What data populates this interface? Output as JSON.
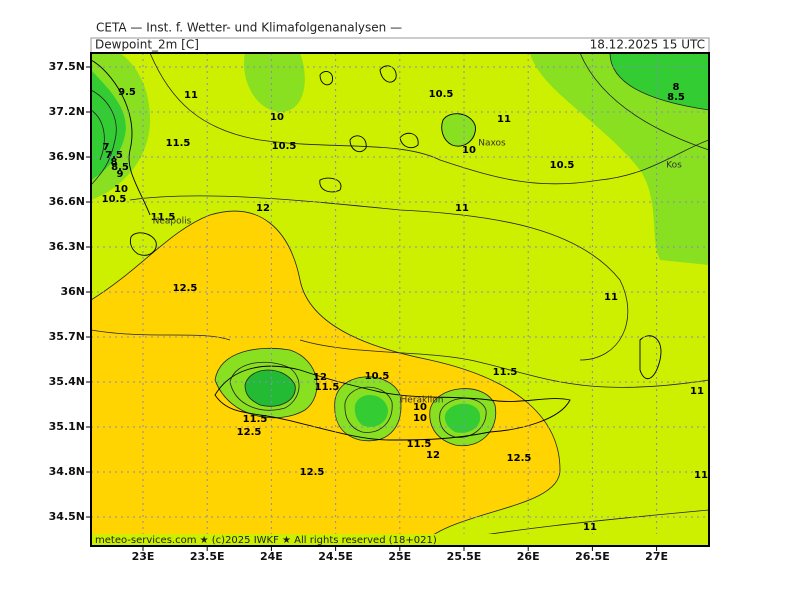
{
  "header": {
    "title": "CETA — Inst. f. Wetter- und Klimafolgenanalysen —",
    "parameter": "Dewpoint_2m [C]",
    "valid_time": "18.12.2025 15 UTC"
  },
  "lat_labels": [
    "37.5N",
    "37.2N",
    "36.9N",
    "36.6N",
    "36.3N",
    "36N",
    "35.7N",
    "35.4N",
    "35.1N",
    "34.8N",
    "34.5N"
  ],
  "lon_labels": [
    "23E",
    "23.5E",
    "24E",
    "24.5E",
    "25E",
    "25.5E",
    "26E",
    "26.5E",
    "27E"
  ],
  "contour_labels": [
    "9.5",
    "11",
    "10",
    "10.5",
    "11",
    "8",
    "8.5",
    "7",
    "7.5",
    "8",
    "8.5",
    "9",
    "11.5",
    "10.5",
    "10",
    "10.5",
    "10",
    "10.5",
    "12",
    "11",
    "11.5",
    "12.5",
    "11",
    "12",
    "11.5",
    "11.5",
    "10.5",
    "10",
    "10",
    "11.5",
    "12.5",
    "11.5",
    "12",
    "12.5",
    "12.5",
    "11",
    "11",
    "11"
  ],
  "places": [
    "Naxos",
    "Kos",
    "Neapolis",
    "Heraklion"
  ],
  "footer": "meteo-services.com ★ (c)2025 IWKF ★ All rights reserved (18+021)"
}
